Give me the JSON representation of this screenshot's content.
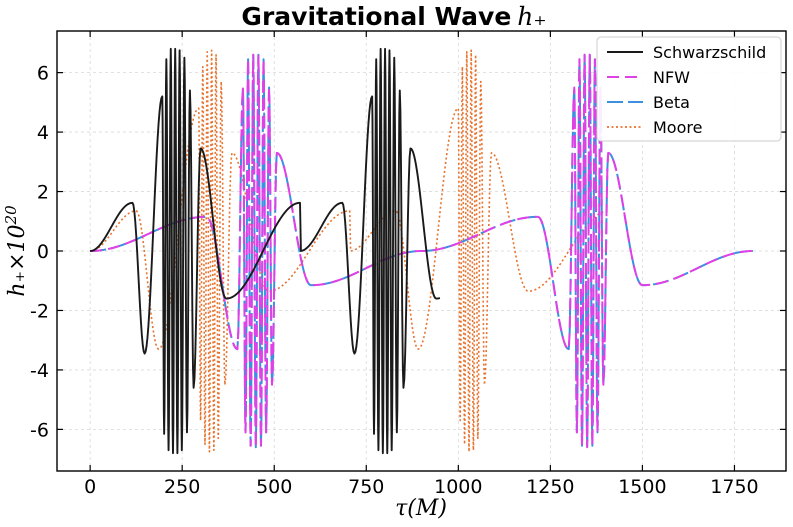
{
  "chart_data": {
    "type": "line",
    "title": "Gravitational Wave",
    "title_math": "h₊",
    "xlabel": "τ(M)",
    "ylabel_main": "h₊×10",
    "ylabel_exp": "20",
    "xlim": [
      -90,
      1890
    ],
    "ylim": [
      -7.4,
      7.4
    ],
    "xticks": [
      0,
      250,
      500,
      750,
      1000,
      1250,
      1500,
      1750
    ],
    "yticks": [
      6,
      4,
      2,
      0,
      -2,
      -4,
      -6
    ],
    "ytick_labels": [
      "6",
      "4",
      "2",
      "0",
      "-2",
      "-4",
      "-6"
    ],
    "grid": true,
    "legend_position": "top-right",
    "series": [
      {
        "name": "Schwarzschild",
        "color": "#1a1a1a",
        "style": "solid",
        "domain": [
          0,
          950
        ],
        "period": 570,
        "segments": [
          {
            "t": 0,
            "v": 0
          },
          {
            "t": 115,
            "v": 1.62
          },
          {
            "t": 148,
            "v": -3.45
          },
          {
            "t": 196,
            "v": 5.2
          },
          {
            "t": 201,
            "v": -6.15
          },
          {
            "t": 207,
            "v": 6.45
          },
          {
            "t": 213,
            "v": -6.7
          },
          {
            "t": 219,
            "v": 6.8
          },
          {
            "t": 225,
            "v": -6.8
          },
          {
            "t": 231,
            "v": 6.8
          },
          {
            "t": 237,
            "v": -6.8
          },
          {
            "t": 243,
            "v": 6.75
          },
          {
            "t": 249,
            "v": -6.7
          },
          {
            "t": 256,
            "v": 6.5
          },
          {
            "t": 263,
            "v": -6.1
          },
          {
            "t": 271,
            "v": 5.4
          },
          {
            "t": 281,
            "v": -4.6
          },
          {
            "t": 300,
            "v": 3.45
          },
          {
            "t": 370,
            "v": -1.6
          },
          {
            "t": 570,
            "v": 1.62
          }
        ]
      },
      {
        "name": "NFW",
        "color": "#e040e6",
        "style": "dashed",
        "domain": [
          0,
          1800
        ],
        "period": 900,
        "segments": [
          {
            "t": 0,
            "v": 0
          },
          {
            "t": 316,
            "v": 1.15
          },
          {
            "t": 400,
            "v": -3.3
          },
          {
            "t": 415,
            "v": 5.5
          },
          {
            "t": 422,
            "v": -6.1
          },
          {
            "t": 429,
            "v": 6.45
          },
          {
            "t": 436,
            "v": -6.55
          },
          {
            "t": 443,
            "v": 6.6
          },
          {
            "t": 450,
            "v": -6.6
          },
          {
            "t": 457,
            "v": 6.6
          },
          {
            "t": 464,
            "v": -6.55
          },
          {
            "t": 471,
            "v": 6.45
          },
          {
            "t": 478,
            "v": -6.1
          },
          {
            "t": 486,
            "v": 5.5
          },
          {
            "t": 494,
            "v": -4.5
          },
          {
            "t": 507,
            "v": 3.3
          },
          {
            "t": 600,
            "v": -1.15
          },
          {
            "t": 900,
            "v": 0
          }
        ]
      },
      {
        "name": "Beta",
        "color": "#3d8fe0",
        "style": "longdash",
        "domain": [
          0,
          1800
        ],
        "period": 900,
        "segments": [
          {
            "t": 0,
            "v": 0
          },
          {
            "t": 316,
            "v": 1.15
          },
          {
            "t": 400,
            "v": -3.3
          },
          {
            "t": 415,
            "v": 5.5
          },
          {
            "t": 422,
            "v": -6.1
          },
          {
            "t": 429,
            "v": 6.45
          },
          {
            "t": 436,
            "v": -6.55
          },
          {
            "t": 443,
            "v": 6.6
          },
          {
            "t": 450,
            "v": -6.6
          },
          {
            "t": 457,
            "v": 6.6
          },
          {
            "t": 464,
            "v": -6.55
          },
          {
            "t": 471,
            "v": 6.45
          },
          {
            "t": 478,
            "v": -6.1
          },
          {
            "t": 486,
            "v": 5.5
          },
          {
            "t": 494,
            "v": -4.5
          },
          {
            "t": 507,
            "v": 3.3
          },
          {
            "t": 600,
            "v": -1.15
          },
          {
            "t": 900,
            "v": 0
          }
        ]
      },
      {
        "name": "Moore",
        "color": "#e8712b",
        "style": "dotted",
        "domain": [
          0,
          1410
        ],
        "period": 705,
        "segments": [
          {
            "t": 0,
            "v": 0
          },
          {
            "t": 125,
            "v": 1.35
          },
          {
            "t": 186,
            "v": -3.3
          },
          {
            "t": 295,
            "v": 4.8
          },
          {
            "t": 300,
            "v": -5.7
          },
          {
            "t": 306,
            "v": 6.2
          },
          {
            "t": 312,
            "v": -6.5
          },
          {
            "t": 318,
            "v": 6.7
          },
          {
            "t": 324,
            "v": -6.75
          },
          {
            "t": 330,
            "v": 6.75
          },
          {
            "t": 336,
            "v": -6.7
          },
          {
            "t": 342,
            "v": 6.6
          },
          {
            "t": 348,
            "v": -6.3
          },
          {
            "t": 356,
            "v": 5.7
          },
          {
            "t": 366,
            "v": -4.5
          },
          {
            "t": 385,
            "v": 3.3
          },
          {
            "t": 485,
            "v": -1.35
          },
          {
            "t": 705,
            "v": 1.35
          }
        ]
      }
    ]
  }
}
